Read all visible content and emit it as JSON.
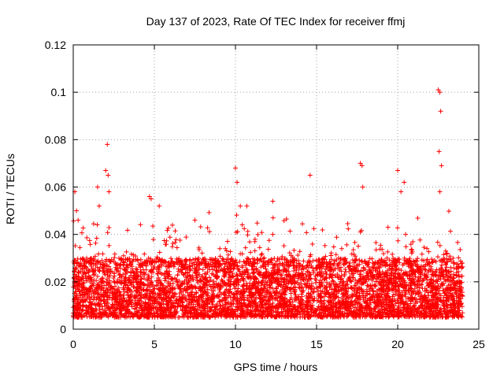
{
  "chart_data": {
    "type": "scatter",
    "title": "Day 137 of 2023, Rate Of TEC Index for receiver ffmj",
    "xlabel": "GPS time / hours",
    "ylabel": "ROTI / TECUs",
    "xlim": [
      0,
      25
    ],
    "ylim": [
      0,
      0.12
    ],
    "grid": true,
    "marker": "+",
    "marker_color": "#ff0000",
    "x_ticks": [
      0,
      5,
      10,
      15,
      20,
      25
    ],
    "x_tick_labels": [
      "0",
      "5",
      "10",
      "15",
      "20",
      "25"
    ],
    "y_ticks": [
      0,
      0.02,
      0.04,
      0.06,
      0.08,
      0.1,
      0.12
    ],
    "y_tick_labels": [
      "0",
      "0.02",
      "0.04",
      "0.06",
      "0.08",
      "0.1",
      "0.12"
    ],
    "data_extent_hours": [
      0,
      24
    ],
    "typical_roti_range": [
      0.005,
      0.03
    ],
    "series": [
      {
        "name": "ROTI",
        "note": "dense band of points between ~0.005 and ~0.03 TECU/s across 0-24 h; outliers listed below",
        "x": [
          0.1,
          0.2,
          0.3,
          1.5,
          1.6,
          2.0,
          2.1,
          2.15,
          2.2,
          4.7,
          4.8,
          5.3,
          10.0,
          10.1,
          10.3,
          10.7,
          12.3,
          14.6,
          17.7,
          17.8,
          17.85,
          20.0,
          20.2,
          20.4,
          22.5,
          22.6,
          22.65,
          22.7,
          22.55,
          22.6
        ],
        "y": [
          0.058,
          0.05,
          0.046,
          0.06,
          0.052,
          0.067,
          0.078,
          0.065,
          0.058,
          0.056,
          0.055,
          0.052,
          0.068,
          0.062,
          0.052,
          0.052,
          0.054,
          0.065,
          0.07,
          0.069,
          0.06,
          0.067,
          0.058,
          0.062,
          0.101,
          0.1,
          0.092,
          0.069,
          0.075,
          0.058
        ]
      }
    ]
  }
}
